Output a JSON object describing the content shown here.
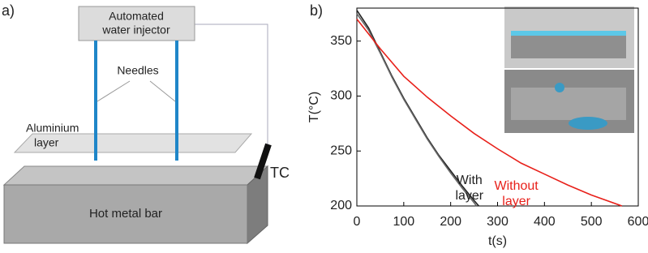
{
  "panels": [
    "a)",
    "b)"
  ],
  "diagram": {
    "injector": [
      "Automated",
      "water injector"
    ],
    "needles": "Needles",
    "layer": [
      "Aluminium",
      "layer"
    ],
    "bar": "Hot metal bar",
    "thermocouple": "TC"
  },
  "chart_data": {
    "type": "line",
    "xlabel": "t(s)",
    "ylabel": "T(°C)",
    "xlim": [
      0,
      600
    ],
    "ylim": [
      200,
      380
    ],
    "xticks": [
      0,
      100,
      200,
      300,
      400,
      500,
      600
    ],
    "yticks": [
      200,
      250,
      300,
      350
    ],
    "series": [
      {
        "color": "#222222",
        "x": [
          0,
          25,
          50,
          75,
          100,
          125,
          150,
          175,
          200,
          225,
          250,
          260
        ],
        "values": [
          378,
          362,
          340,
          318,
          298,
          280,
          262,
          246,
          232,
          218,
          205,
          200
        ]
      },
      {
        "color": "#666666",
        "x": [
          0,
          25,
          50,
          75,
          100,
          125,
          150,
          175,
          200,
          225,
          250,
          255
        ],
        "values": [
          375,
          360,
          339,
          317,
          297,
          279,
          261,
          245,
          230,
          216,
          203,
          200
        ]
      },
      {
        "color": "#e8201a",
        "x": [
          0,
          50,
          100,
          150,
          200,
          250,
          300,
          350,
          400,
          450,
          500,
          565
        ],
        "values": [
          370,
          343,
          318,
          299,
          282,
          266,
          252,
          239,
          229,
          219,
          210,
          200
        ]
      }
    ],
    "annotations": [
      {
        "lines": [
          "With",
          "layer"
        ],
        "color": "#222222",
        "x": 240,
        "y": 223
      },
      {
        "lines": [
          "Without",
          "layer"
        ],
        "color": "#e8201a",
        "x": 340,
        "y": 218
      }
    ]
  }
}
